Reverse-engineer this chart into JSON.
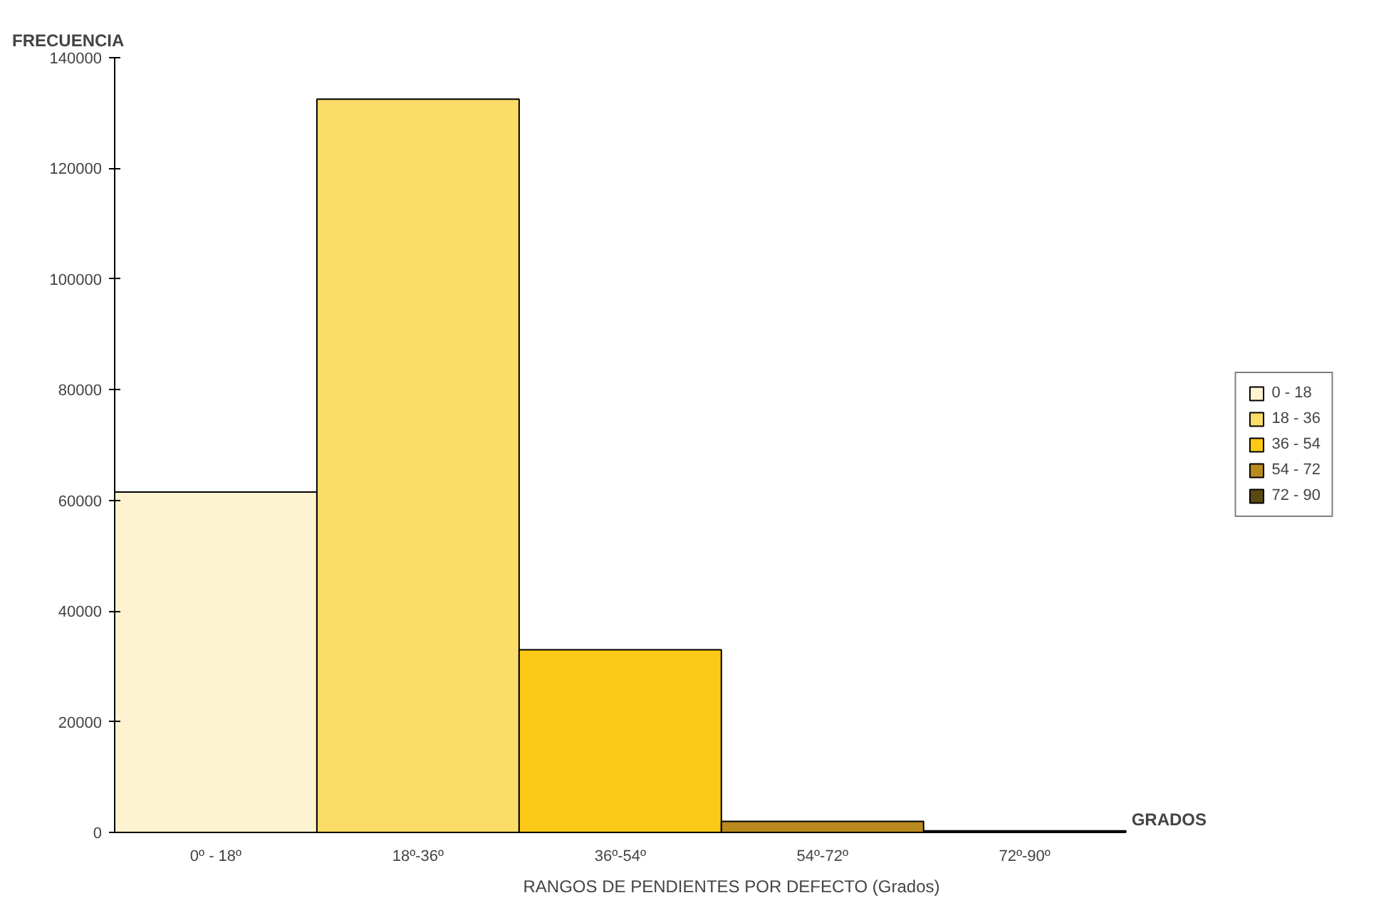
{
  "chart_data": {
    "type": "bar",
    "xlabel": "RANGOS DE PENDIENTES POR DEFECTO (Grados)",
    "ylabel": "FRECUENCIA",
    "annotations": [
      "GRADOS"
    ],
    "categories": [
      "0º - 18º",
      "18º-36º",
      "36º-54º",
      "54º-72º",
      "72º-90º"
    ],
    "series": [
      {
        "name": "0 - 18",
        "color": "#fdf3d0",
        "values": [
          61500,
          null,
          null,
          null,
          null
        ]
      },
      {
        "name": "18 - 36",
        "color": "#fbdc68",
        "values": [
          null,
          132500,
          null,
          null,
          null
        ]
      },
      {
        "name": "36 - 54",
        "color": "#fcc917",
        "values": [
          null,
          null,
          33000,
          null,
          null
        ]
      },
      {
        "name": "54 - 72",
        "color": "#b98a1e",
        "values": [
          null,
          null,
          null,
          2000,
          null
        ]
      },
      {
        "name": "72 - 90",
        "color": "#5a4a10",
        "values": [
          null,
          null,
          null,
          null,
          300
        ]
      }
    ],
    "ylim": [
      0,
      140000
    ],
    "yticks": [
      0,
      20000,
      40000,
      60000,
      80000,
      100000,
      120000,
      140000
    ],
    "grid": false,
    "legend": "right"
  }
}
